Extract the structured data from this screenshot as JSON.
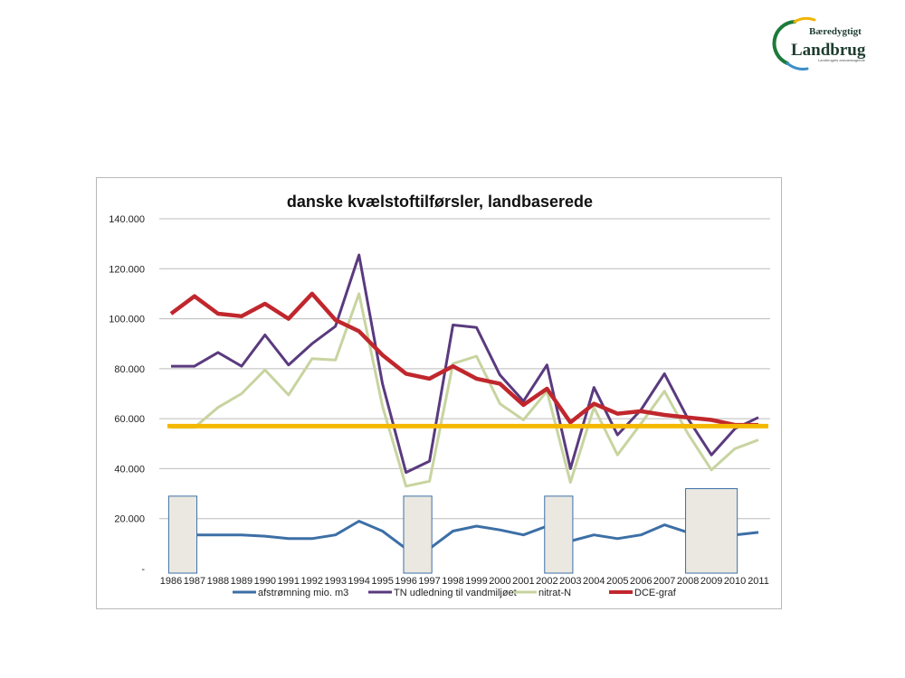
{
  "logo": {
    "line1": "Bæredygtigt",
    "line2": "Landbrug",
    "tagline": "Landbrugets ansvarstagende"
  },
  "colors": {
    "afstromning": "#3c6fa6",
    "tn": "#5a3a7e",
    "nitrat": "#c8d4a0",
    "dce": "#c0272d",
    "reference_line": "#f5b800",
    "cover_box_fill": "#eae8e0",
    "cover_box_border": "#3d6fa8",
    "grid": "#bcbcbc"
  },
  "chart_data": {
    "type": "line",
    "title": "danske kvælstoftilførsler, landbaserede",
    "xlabel": "",
    "ylabel": "",
    "ylim": [
      0,
      140000
    ],
    "yticks": [
      0,
      20000,
      40000,
      60000,
      80000,
      100000,
      120000,
      140000
    ],
    "ytick_labels": [
      "-",
      "20.000",
      "40.000",
      "60.000",
      "80.000",
      "100.000",
      "120.000",
      "140.000"
    ],
    "grid": true,
    "legend_position": "bottom",
    "categories": [
      "1986",
      "1987",
      "1988",
      "1989",
      "1990",
      "1991",
      "1992",
      "1993",
      "1994",
      "1995",
      "1996",
      "1997",
      "1998",
      "1999",
      "2000",
      "2001",
      "2002",
      "2003",
      "2004",
      "2005",
      "2006",
      "2007",
      "2008",
      "2009",
      "2010",
      "2011"
    ],
    "series": [
      {
        "name": "afstrømning mio. m3",
        "color_key": "afstromning",
        "values": [
          13500,
          13500,
          13500,
          13500,
          13000,
          12000,
          12000,
          13500,
          19000,
          15000,
          8000,
          8000,
          15000,
          17000,
          15500,
          13500,
          17000,
          11000,
          13500,
          12000,
          13500,
          17500,
          14500,
          11500,
          13500,
          14500
        ]
      },
      {
        "name": "TN udledning til vandmiljøet",
        "color_key": "tn",
        "values": [
          81000,
          81000,
          86500,
          81000,
          93500,
          81500,
          90000,
          97000,
          125500,
          74000,
          38500,
          43000,
          97500,
          96500,
          77500,
          67000,
          81500,
          40000,
          72500,
          53500,
          63500,
          78000,
          60000,
          45500,
          56000,
          60500
        ]
      },
      {
        "name": "nitrat-N",
        "color_key": "nitrat",
        "values": [
          56500,
          56500,
          64500,
          70000,
          79500,
          69500,
          84000,
          83500,
          110000,
          65000,
          33000,
          35000,
          82000,
          85000,
          66000,
          59500,
          71000,
          34500,
          64500,
          45500,
          58000,
          71000,
          54000,
          39500,
          48000,
          51500
        ]
      },
      {
        "name": "DCE-graf",
        "color_key": "dce",
        "values": [
          102000,
          109000,
          102000,
          101000,
          106000,
          100000,
          110000,
          99500,
          95000,
          85500,
          78000,
          76000,
          81000,
          76000,
          74000,
          65500,
          72000,
          58500,
          66000,
          62000,
          63000,
          61500,
          60500,
          59500,
          57500,
          57500
        ]
      }
    ],
    "reference_line": {
      "value": 57000,
      "color_key": "reference_line"
    },
    "cover_boxes": [
      {
        "from": "1986",
        "to": "1987",
        "top": 29000
      },
      {
        "from": "1996",
        "to": "1997",
        "top": 29000
      },
      {
        "from": "2002",
        "to": "2003",
        "top": 29000
      },
      {
        "from": "2008",
        "to": "2010",
        "top": 32000
      }
    ]
  }
}
